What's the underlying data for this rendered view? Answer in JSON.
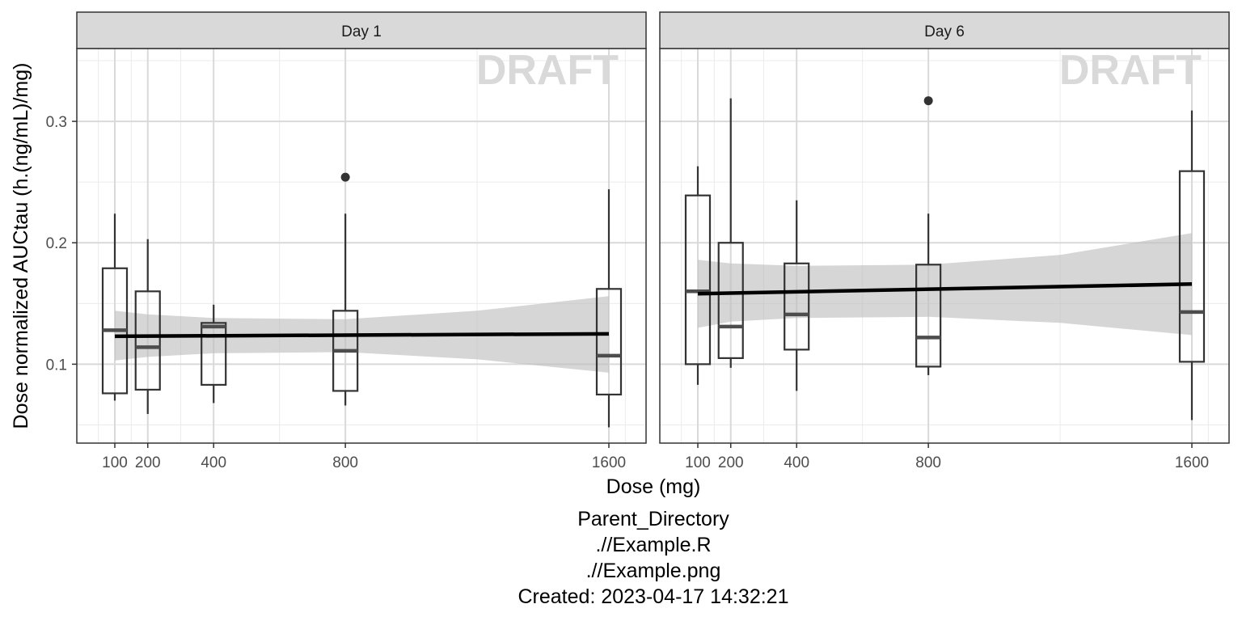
{
  "chart_data": {
    "type": "boxplot",
    "xlabel": "Dose (mg)",
    "ylabel": "Dose normalized AUCtau (h.(ng/mL)/mg)",
    "xlim": [
      0,
      1700
    ],
    "ylim": [
      0.035,
      0.36
    ],
    "x_ticks": [
      100,
      200,
      400,
      800,
      1600
    ],
    "x_tick_labels": [
      "100",
      "200",
      "400",
      "800",
      "1600"
    ],
    "y_ticks": [
      0.1,
      0.2,
      0.3
    ],
    "y_tick_labels": [
      "0.1",
      "0.2",
      "0.3"
    ],
    "grid": true,
    "watermark": "DRAFT",
    "panels": [
      {
        "strip": "Day 1",
        "boxes": [
          {
            "dose": 100,
            "low": 0.07,
            "q1": 0.076,
            "median": 0.128,
            "q3": 0.179,
            "high": 0.224,
            "outliers": []
          },
          {
            "dose": 200,
            "low": 0.059,
            "q1": 0.079,
            "median": 0.114,
            "q3": 0.16,
            "high": 0.203,
            "outliers": []
          },
          {
            "dose": 400,
            "low": 0.068,
            "q1": 0.083,
            "median": 0.131,
            "q3": 0.134,
            "high": 0.149,
            "outliers": []
          },
          {
            "dose": 800,
            "low": 0.066,
            "q1": 0.078,
            "median": 0.111,
            "q3": 0.144,
            "high": 0.224,
            "outliers": [
              0.254
            ]
          },
          {
            "dose": 1600,
            "low": 0.048,
            "q1": 0.075,
            "median": 0.107,
            "q3": 0.162,
            "high": 0.244,
            "outliers": []
          }
        ],
        "fit": {
          "x": [
            100,
            1600
          ],
          "y": [
            0.123,
            0.125
          ]
        },
        "band": {
          "x": [
            100,
            200,
            400,
            800,
            1200,
            1600
          ],
          "lower": [
            0.103,
            0.106,
            0.109,
            0.11,
            0.104,
            0.093
          ],
          "upper": [
            0.144,
            0.141,
            0.138,
            0.137,
            0.144,
            0.156
          ]
        }
      },
      {
        "strip": "Day 6",
        "boxes": [
          {
            "dose": 100,
            "low": 0.083,
            "q1": 0.1,
            "median": 0.16,
            "q3": 0.239,
            "high": 0.263,
            "outliers": []
          },
          {
            "dose": 200,
            "low": 0.097,
            "q1": 0.105,
            "median": 0.131,
            "q3": 0.2,
            "high": 0.319,
            "outliers": []
          },
          {
            "dose": 400,
            "low": 0.078,
            "q1": 0.112,
            "median": 0.141,
            "q3": 0.183,
            "high": 0.235,
            "outliers": []
          },
          {
            "dose": 800,
            "low": 0.091,
            "q1": 0.098,
            "median": 0.122,
            "q3": 0.182,
            "high": 0.224,
            "outliers": [
              0.317
            ]
          },
          {
            "dose": 1600,
            "low": 0.054,
            "q1": 0.102,
            "median": 0.143,
            "q3": 0.259,
            "high": 0.309,
            "outliers": []
          }
        ],
        "fit": {
          "x": [
            100,
            1600
          ],
          "y": [
            0.158,
            0.166
          ]
        },
        "band": {
          "x": [
            100,
            200,
            400,
            800,
            1200,
            1600
          ],
          "lower": [
            0.13,
            0.135,
            0.138,
            0.139,
            0.134,
            0.124
          ],
          "upper": [
            0.186,
            0.183,
            0.181,
            0.182,
            0.19,
            0.208
          ]
        }
      }
    ]
  },
  "caption": {
    "lines": [
      "Parent_Directory",
      ".//Example.R",
      ".//Example.png",
      "Created: 2023-04-17 14:32:21"
    ]
  }
}
